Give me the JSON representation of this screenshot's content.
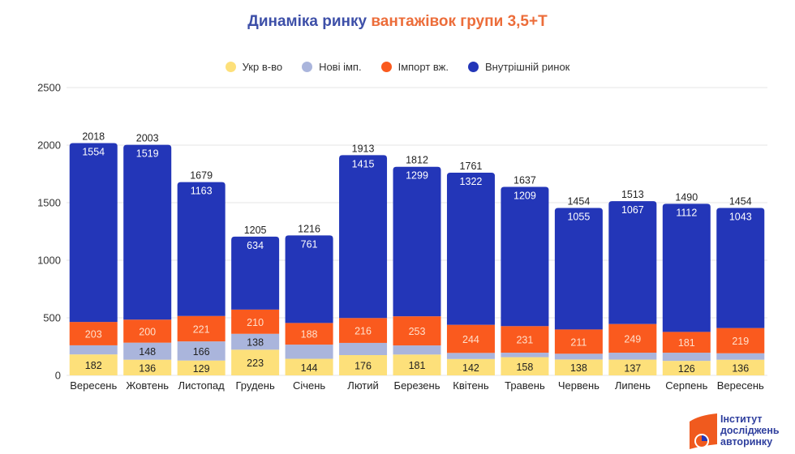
{
  "header": {
    "title_part1": "Динаміка ринку",
    "title_part2": "вантажівок групи 3,5+Т"
  },
  "colors": {
    "title_part1": "#3d4fa8",
    "title_part2": "#ec6d3a"
  },
  "logo": {
    "line1": "Інститут",
    "line2": "досліджень",
    "line3": "авторинку"
  },
  "chart_data": {
    "type": "bar",
    "stacked": true,
    "title": "Динаміка ринку вантажівок групи 3,5+Т",
    "xlabel": "",
    "ylabel": "",
    "ylim": [
      0,
      2500
    ],
    "yticks": [
      0,
      500,
      1000,
      1500,
      2000,
      2500
    ],
    "grid": true,
    "legend_position": "top",
    "categories": [
      "Вересень",
      "Жовтень",
      "Листопад",
      "Грудень",
      "Січень",
      "Лютий",
      "Березень",
      "Квітень",
      "Травень",
      "Червень",
      "Липень",
      "Серпень",
      "Вересень"
    ],
    "series": [
      {
        "name": "Укр в-во",
        "color": "#fde07a",
        "label_color": "#222222",
        "show_labels": true,
        "values": [
          182,
          136,
          129,
          223,
          144,
          176,
          181,
          142,
          158,
          138,
          137,
          126,
          136
        ]
      },
      {
        "name": "Нові імп.",
        "color": "#aab5dc",
        "label_color": "#222222",
        "show_labels": [
          false,
          true,
          true,
          true,
          false,
          false,
          false,
          false,
          false,
          false,
          false,
          false,
          false
        ],
        "values": [
          79,
          148,
          166,
          138,
          123,
          106,
          79,
          53,
          39,
          50,
          60,
          71,
          56
        ]
      },
      {
        "name": "Імпорт вж.",
        "color": "#fa5a1e",
        "label_color": "#ffe0cc",
        "show_labels": true,
        "values": [
          203,
          200,
          221,
          210,
          188,
          216,
          253,
          244,
          231,
          211,
          249,
          181,
          219
        ]
      },
      {
        "name": "Внутрішній ринок",
        "color": "#2336b8",
        "label_color": "#ffffff",
        "show_labels": true,
        "values": [
          1554,
          1519,
          1163,
          634,
          761,
          1415,
          1299,
          1322,
          1209,
          1055,
          1067,
          1112,
          1043
        ]
      }
    ],
    "totals": [
      2018,
      2003,
      1679,
      1205,
      1216,
      1913,
      1812,
      1761,
      1637,
      1454,
      1513,
      1490,
      1454
    ]
  }
}
